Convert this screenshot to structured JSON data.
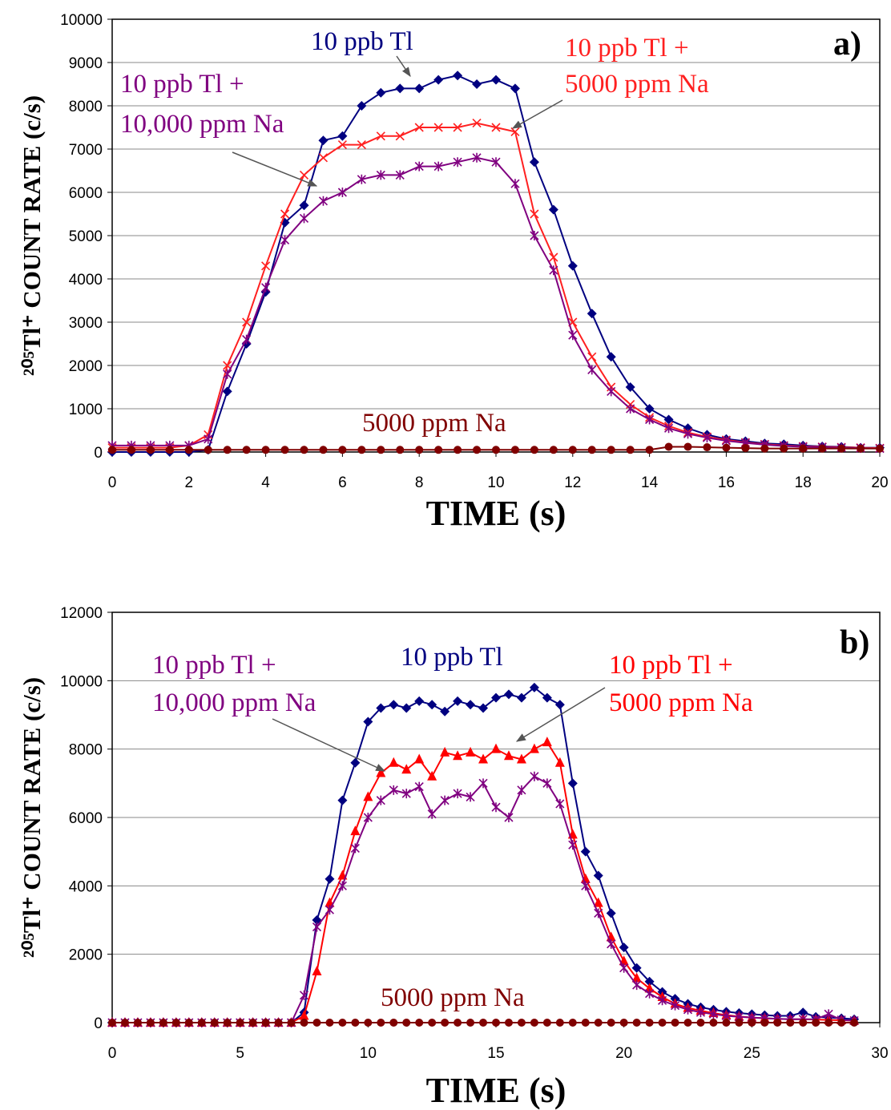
{
  "chart_data": [
    {
      "type": "line",
      "panel_label": "a)",
      "xlabel": "TIME (s)",
      "ylabel": "²⁰⁵Tl⁺ COUNT RATE (c/s)",
      "xlim": [
        0,
        20
      ],
      "xticks": [
        0,
        2,
        4,
        6,
        8,
        10,
        12,
        14,
        16,
        18,
        20
      ],
      "ylim": [
        0,
        10000
      ],
      "yticks": [
        0,
        1000,
        2000,
        3000,
        4000,
        5000,
        6000,
        7000,
        8000,
        9000,
        10000
      ],
      "grid": true,
      "x": [
        0,
        0.5,
        1,
        1.5,
        2,
        2.5,
        3,
        3.5,
        4,
        4.5,
        5,
        5.5,
        6,
        6.5,
        7,
        7.5,
        8,
        8.5,
        9,
        9.5,
        10,
        10.5,
        11,
        11.5,
        12,
        12.5,
        13,
        13.5,
        14,
        14.5,
        15,
        15.5,
        16,
        16.5,
        17,
        17.5,
        18,
        18.5,
        19,
        19.5,
        20
      ],
      "series": [
        {
          "name": [
            "10 ppb Tl"
          ],
          "color": "#000080",
          "marker": "diamond",
          "values": [
            0,
            0,
            0,
            0,
            0,
            50,
            1400,
            2500,
            3700,
            5300,
            5700,
            7200,
            7300,
            8000,
            8300,
            8400,
            8400,
            8600,
            8700,
            8500,
            8600,
            8400,
            6700,
            5600,
            4300,
            3200,
            2200,
            1500,
            1000,
            750,
            550,
            400,
            300,
            250,
            200,
            180,
            150,
            130,
            120,
            100,
            100
          ]
        },
        {
          "name": [
            "10 ppb Tl +",
            "5000 ppm Na"
          ],
          "color": "#ff2020",
          "marker": "x",
          "values": [
            100,
            100,
            100,
            100,
            150,
            400,
            2000,
            3000,
            4300,
            5500,
            6400,
            6800,
            7100,
            7100,
            7300,
            7300,
            7500,
            7500,
            7500,
            7600,
            7500,
            7400,
            5500,
            4500,
            3000,
            2200,
            1500,
            1100,
            800,
            600,
            450,
            350,
            280,
            220,
            180,
            150,
            130,
            120,
            110,
            100,
            90
          ]
        },
        {
          "name": [
            "10 ppb Tl +",
            "10,000 ppm Na"
          ],
          "color": "#800080",
          "marker": "star",
          "values": [
            150,
            150,
            150,
            150,
            150,
            300,
            1800,
            2600,
            3800,
            4900,
            5400,
            5800,
            6000,
            6300,
            6400,
            6400,
            6600,
            6600,
            6700,
            6800,
            6700,
            6200,
            5000,
            4200,
            2700,
            1900,
            1400,
            1000,
            750,
            550,
            420,
            330,
            260,
            210,
            170,
            140,
            120,
            110,
            100,
            90,
            80
          ]
        },
        {
          "name": [
            "5000 ppm Na"
          ],
          "color": "#800000",
          "marker": "circle",
          "values": [
            50,
            50,
            50,
            50,
            50,
            50,
            50,
            50,
            50,
            50,
            50,
            50,
            50,
            50,
            50,
            50,
            50,
            50,
            50,
            50,
            50,
            50,
            50,
            50,
            50,
            50,
            50,
            50,
            50,
            120,
            120,
            110,
            100,
            90,
            80,
            80,
            80,
            80,
            80,
            80,
            80
          ]
        }
      ]
    },
    {
      "type": "line",
      "panel_label": "b)",
      "xlabel": "TIME (s)",
      "ylabel": "²⁰⁵Tl⁺ COUNT RATE (c/s)",
      "xlim": [
        0,
        30
      ],
      "xticks": [
        0,
        5,
        10,
        15,
        20,
        25,
        30
      ],
      "ylim": [
        0,
        12000
      ],
      "yticks": [
        0,
        2000,
        4000,
        6000,
        8000,
        10000,
        12000
      ],
      "grid": true,
      "x": [
        0,
        0.5,
        1,
        1.5,
        2,
        2.5,
        3,
        3.5,
        4,
        4.5,
        5,
        5.5,
        6,
        6.5,
        7,
        7.5,
        8,
        8.5,
        9,
        9.5,
        10,
        10.5,
        11,
        11.5,
        12,
        12.5,
        13,
        13.5,
        14,
        14.5,
        15,
        15.5,
        16,
        16.5,
        17,
        17.5,
        18,
        18.5,
        19,
        19.5,
        20,
        20.5,
        21,
        21.5,
        22,
        22.5,
        23,
        23.5,
        24,
        24.5,
        25,
        25.5,
        26,
        26.5,
        27,
        27.5,
        28,
        28.5,
        29
      ],
      "series": [
        {
          "name": [
            "10 ppb Tl"
          ],
          "color": "#000080",
          "marker": "diamond",
          "values": [
            0,
            0,
            0,
            0,
            0,
            0,
            0,
            0,
            0,
            0,
            0,
            0,
            0,
            0,
            0,
            300,
            3000,
            4200,
            6500,
            7600,
            8800,
            9200,
            9300,
            9200,
            9400,
            9300,
            9100,
            9400,
            9300,
            9200,
            9500,
            9600,
            9500,
            9800,
            9500,
            9300,
            7000,
            5000,
            4300,
            3200,
            2200,
            1600,
            1200,
            900,
            700,
            550,
            450,
            380,
            320,
            280,
            250,
            220,
            200,
            200,
            300,
            170,
            150,
            130,
            100
          ]
        },
        {
          "name": [
            "10 ppb Tl +",
            "5000 ppm Na"
          ],
          "color": "#ff0000",
          "marker": "triangle",
          "values": [
            0,
            0,
            0,
            0,
            0,
            0,
            0,
            0,
            0,
            0,
            0,
            0,
            0,
            0,
            0,
            200,
            1500,
            3500,
            4300,
            5600,
            6600,
            7300,
            7600,
            7400,
            7700,
            7200,
            7900,
            7800,
            7900,
            7700,
            8000,
            7800,
            7700,
            8000,
            8200,
            7600,
            5500,
            4200,
            3500,
            2500,
            1800,
            1300,
            1000,
            750,
            550,
            430,
            350,
            280,
            220,
            180,
            150,
            130,
            110,
            100,
            100,
            90,
            80,
            70,
            60
          ]
        },
        {
          "name": [
            "10 ppb Tl +",
            "10,000 ppm Na"
          ],
          "color": "#800080",
          "marker": "star",
          "values": [
            0,
            0,
            0,
            0,
            0,
            0,
            0,
            0,
            0,
            0,
            0,
            0,
            0,
            0,
            0,
            800,
            2800,
            3300,
            4000,
            5100,
            6000,
            6500,
            6800,
            6700,
            6900,
            6100,
            6500,
            6700,
            6600,
            7000,
            6300,
            6000,
            6800,
            7200,
            7000,
            6400,
            5200,
            4000,
            3200,
            2300,
            1600,
            1100,
            850,
            650,
            500,
            380,
            300,
            250,
            200,
            170,
            150,
            130,
            110,
            100,
            100,
            100,
            250,
            80,
            60
          ]
        },
        {
          "name": [
            "5000 ppm Na"
          ],
          "color": "#800000",
          "marker": "circle",
          "values": [
            0,
            0,
            0,
            0,
            0,
            0,
            0,
            0,
            0,
            0,
            0,
            0,
            0,
            0,
            0,
            0,
            0,
            0,
            0,
            0,
            0,
            0,
            0,
            0,
            0,
            0,
            0,
            0,
            0,
            0,
            0,
            0,
            0,
            0,
            0,
            0,
            0,
            0,
            0,
            0,
            0,
            0,
            0,
            0,
            0,
            0,
            0,
            0,
            0,
            0,
            0,
            0,
            0,
            0,
            0,
            0,
            0,
            0,
            0
          ]
        }
      ]
    }
  ]
}
